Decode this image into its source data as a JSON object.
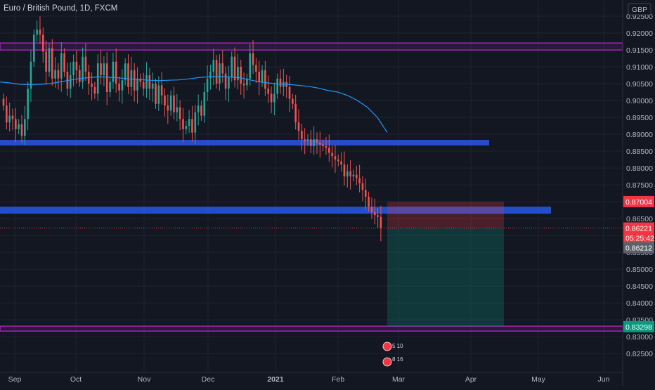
{
  "chart_data": {
    "type": "candlestick",
    "title": "Euro / British Pound, 1D, FXCM",
    "currency": "GBP",
    "ylim": [
      0.8215,
      0.9252
    ],
    "x_ticks": [
      "Sep",
      "Oct",
      "Nov",
      "Dec",
      "2021",
      "Feb",
      "Mar",
      "Apr",
      "May",
      "Jun"
    ],
    "y_ticks": [
      "0.92500",
      "0.92000",
      "0.91500",
      "0.91000",
      "0.90500",
      "0.90000",
      "0.89500",
      "0.89000",
      "0.88500",
      "0.88000",
      "0.87500",
      "0.87000",
      "0.86500",
      "0.86000",
      "0.85500",
      "0.85000",
      "0.84500",
      "0.84000",
      "0.83500",
      "0.83000",
      "0.82500"
    ],
    "y_tick_values": [
      0.925,
      0.92,
      0.915,
      0.91,
      0.905,
      0.9,
      0.895,
      0.89,
      0.885,
      0.88,
      0.875,
      0.87,
      0.865,
      0.86,
      0.855,
      0.85,
      0.845,
      0.84,
      0.835,
      0.83,
      0.825
    ],
    "candle_closes": [
      0.8985,
      0.8935,
      0.8955,
      0.8945,
      0.8915,
      0.893,
      0.8895,
      0.8945,
      0.9035,
      0.9115,
      0.9195,
      0.921,
      0.9195,
      0.9145,
      0.9085,
      0.9155,
      0.9065,
      0.909,
      0.9065,
      0.914,
      0.9085,
      0.9035,
      0.9075,
      0.9115,
      0.909,
      0.9055,
      0.913,
      0.9085,
      0.905,
      0.904,
      0.902,
      0.911,
      0.9075,
      0.911,
      0.9025,
      0.9055,
      0.9115,
      0.905,
      0.903,
      0.906,
      0.911,
      0.904,
      0.909,
      0.903,
      0.9065,
      0.9055,
      0.9035,
      0.9075,
      0.9035,
      0.905,
      0.899,
      0.9045,
      0.9015,
      0.8985,
      0.897,
      0.9015,
      0.8965,
      0.898,
      0.8945,
      0.8915,
      0.8925,
      0.8945,
      0.8905,
      0.8965,
      0.8985,
      0.8955,
      0.9025,
      0.9065,
      0.9085,
      0.912,
      0.905,
      0.911,
      0.908,
      0.9035,
      0.907,
      0.913,
      0.906,
      0.91,
      0.905,
      0.9045,
      0.9065,
      0.914,
      0.9105,
      0.9085,
      0.9055,
      0.909,
      0.9035,
      0.902,
      0.8995,
      0.902,
      0.9065,
      0.904,
      0.9055,
      0.904,
      0.9005,
      0.899,
      0.8935,
      0.891,
      0.8885,
      0.888,
      0.8885,
      0.8865,
      0.8885,
      0.8875,
      0.887,
      0.8865,
      0.886,
      0.8845,
      0.8835,
      0.8825,
      0.882,
      0.881,
      0.8775,
      0.879,
      0.8775,
      0.878,
      0.877,
      0.8755,
      0.8735,
      0.8715,
      0.8685,
      0.867,
      0.866,
      0.8655,
      0.8622
    ],
    "moving_average": [
      [
        0.9055,
        0.9052,
        0.9048,
        0.9047,
        0.9048,
        0.905,
        0.9055,
        0.906,
        0.9065,
        0.9068,
        0.907,
        0.9069,
        0.9067,
        0.9064,
        0.9062,
        0.906,
        0.9059,
        0.906,
        0.9061,
        0.9064,
        0.9068,
        0.907,
        0.9071,
        0.907,
        0.9068,
        0.9062,
        0.9056,
        0.9052,
        0.9049,
        0.9048,
        0.9045,
        0.9042,
        0.9037,
        0.903,
        0.9025,
        0.9015,
        0.9,
        0.898,
        0.895,
        0.8905
      ]
    ],
    "horizontal_levels": [
      0.916,
      0.8875,
      0.8675,
      0.8325
    ],
    "price_labels": [
      "0.87004",
      "0.86221",
      "05:25:42",
      "0.86212",
      "0.83298"
    ],
    "position": {
      "entry": 0.86221,
      "stop": 0.87004,
      "target": 0.83298
    },
    "annotation_texts": [
      "5 10",
      "8 16"
    ]
  }
}
